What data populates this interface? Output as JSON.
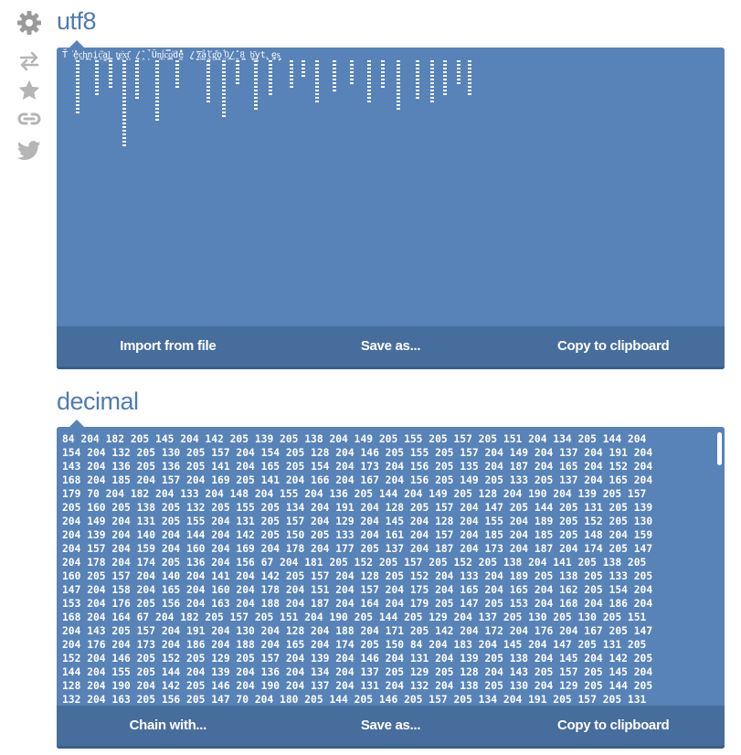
{
  "sidebar": {
    "icons": [
      "gear-icon",
      "swap-icon",
      "star-icon",
      "link-icon",
      "twitter-icon"
    ]
  },
  "utf8_panel": {
    "title": "utf8",
    "content": "T̈́͘e̮̽c̠͍h͖͈̞n̖̜ḭ̰c̋͐a̻l͇̳ ̰̺t̟͔e̬͐x̹͈t͈̑ ̺̬/̭̂ ̩̚Ȗ̹n͉̖ḯ͔c̿ͅo̳͐ḋ̼e̽̊ ̣̺/̝̰ ̎͝ż͖ả̼ľ̻g̬͌o̭̠ ̤͋0̡͜/̬̽ ̦̠8͈͎ ̞̬b͂͜y̹̬t̢̫ȩ̟s̮͎",
    "buttons": [
      "Import from file",
      "Save as...",
      "Copy to clipboard"
    ]
  },
  "decimal_panel": {
    "title": "decimal",
    "lines": [
      "84 204 182 205 145 204 142 205 139 205 138 204 149 205 155 205 157 205 151 204 134 205 144 204",
      "154 204 132 205 130 205 157 204 154 205 128 204 146 205 155 205 157 204 149 204 137 204 191 204",
      "143 204 136 205 136 205 141 204 165 205 154 204 173 204 156 205 135 204 187 204 165 204 152 204",
      "168 204 185 204 157 204 169 205 141 204 166 204 167 204 156 205 149 205 133 205 137 204 165 204",
      "179 70 204 182 204 133 204 148 204 155 204 136 205 144 204 149 205 128 204 190 204 139 205 157",
      "205 160 205 138 205 132 205 155 205 134 204 191 204 128 205 157 204 147 205 144 205 131 205 139",
      "204 149 204 131 205 155 204 131 205 157 204 129 204 145 204 128 204 155 204 189 205 152 205 130",
      "204 139 204 140 204 144 204 142 205 150 205 133 204 161 204 157 204 185 204 185 205 148 204 159",
      "204 157 204 159 204 160 204 169 204 178 204 177 205 137 204 187 204 173 204 187 204 174 205 147",
      "204 178 204 174 205 136 204 156 67 204 181 205 152 205 157 205 152 205 138 204 141 205 138 205",
      "160 205 157 204 140 204 141 204 142 205 157 204 128 205 152 204 133 204 189 205 138 205 133 205",
      "147 204 158 204 165 204 160 204 178 204 151 204 157 204 175 204 165 204 165 204 162 205 154 204",
      "153 204 176 205 156 204 163 204 188 204 187 204 164 204 179 205 147 205 153 204 168 204 186 204",
      "168 204 164 67 204 182 205 157 205 151 204 190 205 144 205 129 204 137 205 130 205 130 205 151",
      "204 143 205 157 204 191 204 130 204 128 204 188 204 171 205 142 204 172 204 176 204 167 205 147",
      "204 176 204 173 204 186 204 188 204 165 204 174 205 150 84 204 183 204 145 204 147 205 131 205",
      "152 204 146 205 152 205 129 205 157 204 139 204 146 204 131 204 139 205 138 204 145 204 142 205",
      "144 204 155 205 144 204 139 204 136 204 134 204 137 205 129 205 128 204 143 205 157 205 145 204",
      "128 204 190 204 142 205 146 204 190 204 137 204 131 204 132 204 138 205 130 204 129 205 144 205",
      "132 204 163 205 156 205 147 70 204 180 205 144 205 146 205 157 205 134 204 191 205 157 205 131"
    ],
    "buttons": [
      "Chain with...",
      "Save as...",
      "Copy to clipboard"
    ]
  }
}
